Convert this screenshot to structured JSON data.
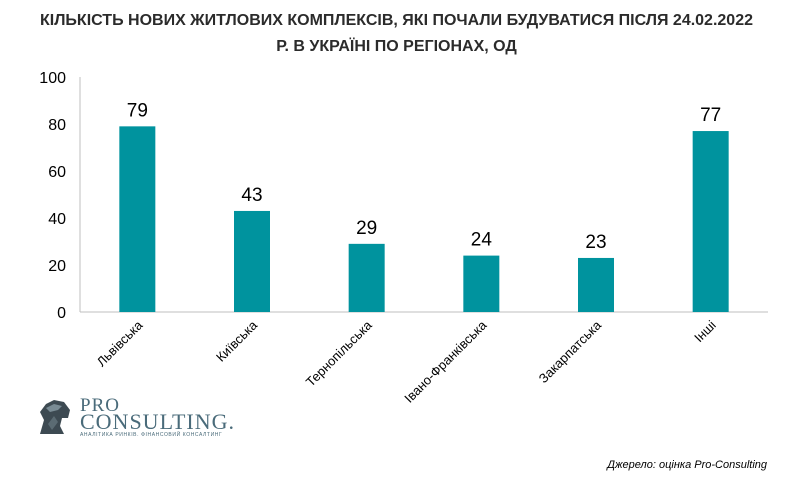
{
  "chart_data": {
    "type": "bar",
    "title_line1": "КІЛЬКІСТЬ НОВИХ ЖИТЛОВИХ КОМПЛЕКСІВ, ЯКІ ПОЧАЛИ БУДУВАТИСЯ ПІСЛЯ 24.02.2022",
    "title_line2": "Р. В УКРАЇНІ ПО РЕГІОНАХ, ОД",
    "categories": [
      "Львівська",
      "Київська",
      "Тернопільська",
      "Івано-Франківська",
      "Закарпатська",
      "Інші"
    ],
    "values": [
      79,
      43,
      29,
      24,
      23,
      77
    ],
    "ylim": [
      0,
      100
    ],
    "yticks": [
      0,
      20,
      40,
      60,
      80,
      100
    ],
    "bar_color": "#00939E",
    "grid": false,
    "legend": "none"
  },
  "source": "Джерело: оцінка Pro-Consulting",
  "logo": {
    "pro": "PRO",
    "consulting": "CONSULTING.",
    "tagline": "АНАЛІТИКА РИНКІВ. ФІНАНСОВИЙ КОНСАЛТИНГ"
  }
}
